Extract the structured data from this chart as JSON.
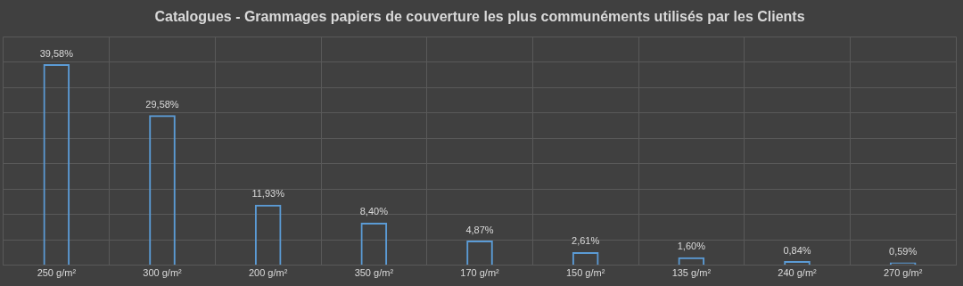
{
  "chart_data": {
    "type": "bar",
    "title": "Catalogues - Grammages papiers de couverture les plus communéments utilisés par les Clients",
    "categories": [
      "250 g/m²",
      "300 g/m²",
      "200 g/m²",
      "350 g/m²",
      "170 g/m²",
      "150 g/m²",
      "135 g/m²",
      "240 g/m²",
      "270 g/m²"
    ],
    "values": [
      39.58,
      29.58,
      11.93,
      8.4,
      4.87,
      2.61,
      1.6,
      0.84,
      0.59
    ],
    "value_labels": [
      "39,58%",
      "29,58%",
      "11,93%",
      "8,40%",
      "4,87%",
      "2,61%",
      "1,60%",
      "0,84%",
      "0,59%"
    ],
    "color": "#5b9bd5",
    "ylim": [
      0,
      45
    ],
    "yticks": [
      {
        "value": 0,
        "label": null
      },
      {
        "value": 5,
        "label": null
      },
      {
        "value": 10,
        "label": null
      },
      {
        "value": 15,
        "label": null
      },
      {
        "value": 20,
        "label": null
      },
      {
        "value": 25,
        "label": null
      },
      {
        "value": 30,
        "label": null
      },
      {
        "value": 35,
        "label": null
      },
      {
        "value": 40,
        "label": null
      },
      {
        "value": 45,
        "label": null
      }
    ],
    "grid": true,
    "legend": false,
    "tick_labels": "x"
  }
}
